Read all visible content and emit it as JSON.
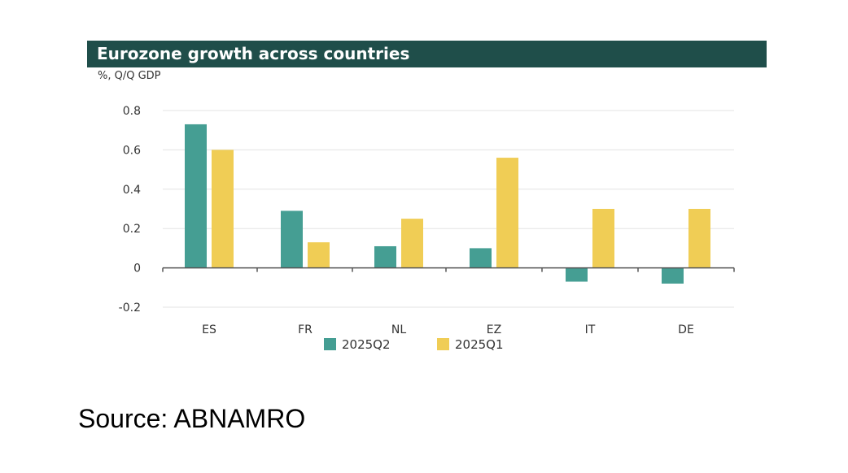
{
  "chart_data": {
    "type": "bar",
    "title": "Eurozone growth across countries",
    "ylabel": "%, Q/Q GDP",
    "categories": [
      "ES",
      "FR",
      "NL",
      "EZ",
      "IT",
      "DE"
    ],
    "series": [
      {
        "name": "2025Q2",
        "color": "#459e93",
        "values": [
          0.73,
          0.29,
          0.11,
          0.1,
          -0.07,
          -0.08
        ]
      },
      {
        "name": "2025Q1",
        "color": "#f0cd55",
        "values": [
          0.6,
          0.13,
          0.25,
          0.56,
          0.3,
          0.3
        ]
      }
    ],
    "ylim": [
      -0.2,
      0.8
    ],
    "yticks": [
      -0.2,
      0,
      0.2,
      0.4,
      0.6,
      0.8
    ],
    "ytick_labels": [
      "-0.2",
      "0",
      "0.2",
      "0.4",
      "0.6",
      "0.8"
    ],
    "grid": true,
    "legend_position": "bottom"
  },
  "source": "Source: ABNAMRO",
  "colors": {
    "title_bar": "#1f4e4a",
    "grid": "#e3e3e3",
    "axis": "#555555"
  }
}
